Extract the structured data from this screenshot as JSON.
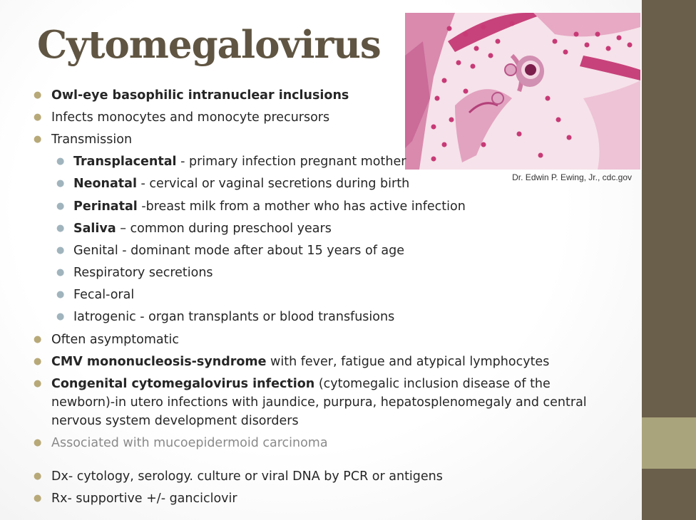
{
  "title": "Cytomegalovirus",
  "image": {
    "description_icon": "micrograph-owl-eye-cell",
    "caption": "Dr. Edwin P. Ewing, Jr., cdc.gov"
  },
  "colors": {
    "title": "#605542",
    "sidebar_dark": "#6a5f4b",
    "sidebar_light": "#aaa47c",
    "bullet_level1": "#b8a978",
    "bullet_level2": "#a0b4bd"
  },
  "bullets": {
    "b1": {
      "bold": "Owl-eye basophilic intranuclear inclusions",
      "text": ""
    },
    "b2": {
      "text": "Infects monocytes and monocyte precursors"
    },
    "b3": {
      "text": "Transmission"
    },
    "s1": {
      "bold": "Transplacental",
      "text": " - primary infection pregnant mother"
    },
    "s2": {
      "bold": "Neonatal",
      "text": " - cervical or vaginal secretions during birth"
    },
    "s3": {
      "bold": "Perinatal",
      "text": "  -breast milk from a mother who has active infection"
    },
    "s4": {
      "bold": "Saliva",
      "text": " – common during preschool years"
    },
    "s5": {
      "text": "Genital - dominant mode after about 15 years of age"
    },
    "s6": {
      "text": "Respiratory secretions"
    },
    "s7": {
      "text": "Fecal-oral"
    },
    "s8": {
      "text": "Iatrogenic - organ transplants or blood transfusions"
    },
    "b4": {
      "text": "Often asymptomatic"
    },
    "b5": {
      "bold": "CMV mononucleosis-syndrome",
      "text": " with  fever, fatigue and atypical lymphocytes"
    },
    "b6": {
      "bold": "Congenital cytomegalovirus infection",
      "text": " (cytomegalic inclusion disease of the newborn)-in utero infections with jaundice, purpura, hepatosplenomegaly and central nervous system development disorders"
    },
    "b7": {
      "text": "Associated with mucoepidermoid carcinoma"
    },
    "b8": {
      "text": "Dx- cytology, serology. culture or viral DNA by PCR or antigens"
    },
    "b9": {
      "text": "Rx- supportive +/- ganciclovir"
    }
  }
}
